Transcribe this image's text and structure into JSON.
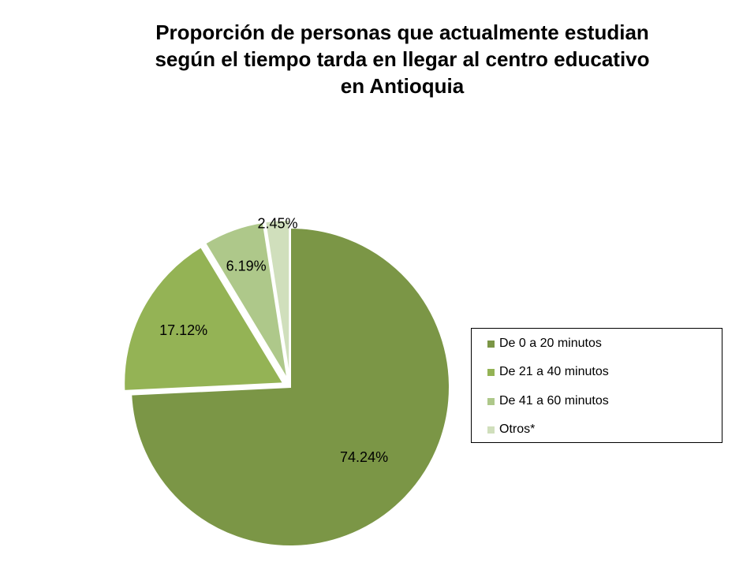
{
  "chart_data": {
    "type": "pie",
    "title": [
      "Proporción de personas que actualmente estudian",
      "según el  tiempo tarda en llegar al centro educativo",
      "en Antioquia"
    ],
    "slices": [
      {
        "name": "De 0 a 20 minutos",
        "value": 74.24,
        "label": "74.24%",
        "color": "#7b9646",
        "exploded": false
      },
      {
        "name": "De 21 a 40 minutos",
        "value": 17.12,
        "label": "17.12%",
        "color": "#94b355",
        "exploded": true
      },
      {
        "name": "De 41 a 60 minutos",
        "value": 6.19,
        "label": "6.19%",
        "color": "#aec88a",
        "exploded": true
      },
      {
        "name": "Otros*",
        "value": 2.45,
        "label": "2.45%",
        "color": "#d0dfbc",
        "exploded": true
      }
    ],
    "legend_position": "right"
  }
}
